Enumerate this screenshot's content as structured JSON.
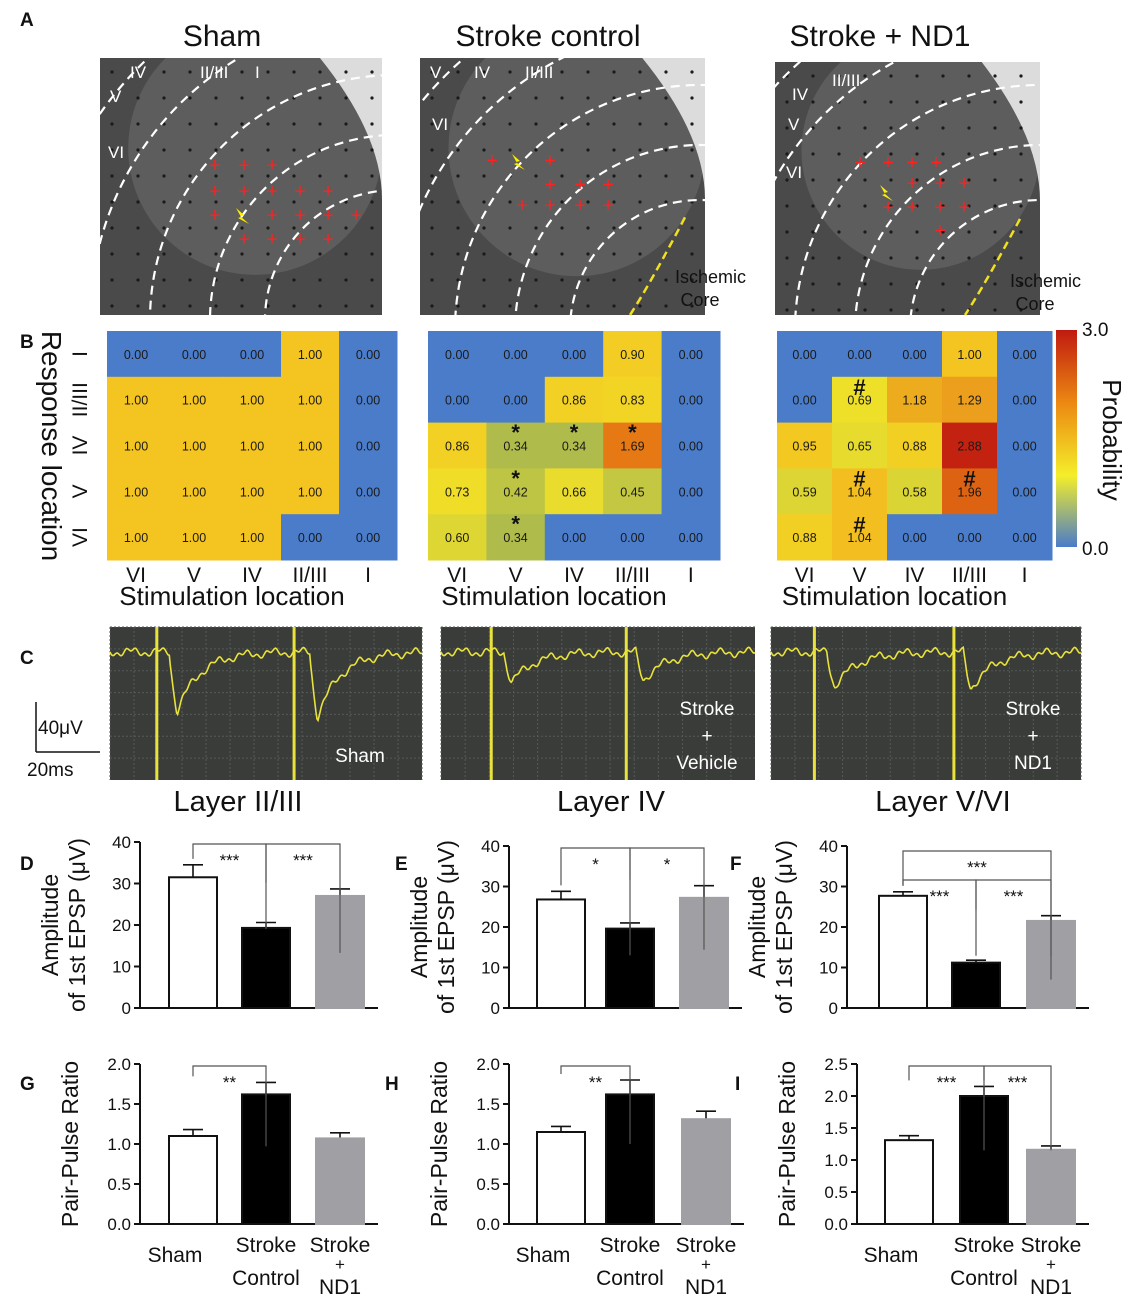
{
  "figure": {
    "panel_labels": [
      "A",
      "B",
      "C",
      "D",
      "E",
      "F",
      "G",
      "H",
      "I"
    ],
    "section_a": {
      "titles": [
        "Sham",
        "Stroke control",
        "Stroke + ND1"
      ],
      "layer_labels": [
        "IV",
        "II/III",
        "I",
        "V",
        "VI"
      ],
      "ischemic_core": [
        "Ischemic",
        "Core"
      ]
    },
    "section_c": {
      "trace_labels": [
        [
          "Sham"
        ],
        [
          "Stroke",
          "+",
          "Vehicle"
        ],
        [
          "Stroke",
          "+",
          "ND1"
        ]
      ],
      "scale_bar": {
        "amplitude": "40μV",
        "time": "20ms"
      },
      "layer_titles": [
        "Layer II/III",
        "Layer IV",
        "Layer V/VI"
      ]
    },
    "colors": {
      "sham_bar": "#ffffff",
      "stroke_bar": "#000000",
      "nd1_bar": "#a0a0a4",
      "heat_low": "#4a7cc9",
      "heat_high": "#c01a10",
      "trace": "#e8e23a",
      "trace_bg": "#3a3c3a"
    }
  },
  "chart_data": [
    {
      "type": "heatmap",
      "title": "Sham",
      "xlabel": "Stimulation location",
      "ylabel": "Response location",
      "x_categories": [
        "VI",
        "V",
        "IV",
        "II/III",
        "I"
      ],
      "y_categories": [
        "I",
        "II/III",
        "IV",
        "V",
        "VI"
      ],
      "values": [
        [
          0.0,
          0.0,
          0.0,
          1.0,
          0.0
        ],
        [
          1.0,
          1.0,
          1.0,
          1.0,
          0.0
        ],
        [
          1.0,
          1.0,
          1.0,
          1.0,
          0.0
        ],
        [
          1.0,
          1.0,
          1.0,
          1.0,
          0.0
        ],
        [
          1.0,
          1.0,
          1.0,
          0.0,
          0.0
        ]
      ],
      "annotations": []
    },
    {
      "type": "heatmap",
      "title": "Stroke control",
      "xlabel": "Stimulation location",
      "x_categories": [
        "VI",
        "V",
        "IV",
        "II/III",
        "I"
      ],
      "y_categories": [
        "I",
        "II/III",
        "IV",
        "V",
        "VI"
      ],
      "values": [
        [
          0.0,
          0.0,
          0.0,
          0.9,
          0.0
        ],
        [
          0.0,
          0.0,
          0.86,
          0.83,
          0.0
        ],
        [
          0.86,
          0.34,
          0.34,
          1.69,
          0.0
        ],
        [
          0.73,
          0.42,
          0.66,
          0.45,
          0.0
        ],
        [
          0.6,
          0.34,
          0.0,
          0.0,
          0.0
        ]
      ],
      "annotations": [
        {
          "row": 2,
          "col": 1,
          "mark": "*"
        },
        {
          "row": 2,
          "col": 2,
          "mark": "*"
        },
        {
          "row": 2,
          "col": 3,
          "mark": "*"
        },
        {
          "row": 3,
          "col": 1,
          "mark": "*"
        },
        {
          "row": 4,
          "col": 1,
          "mark": "*"
        }
      ]
    },
    {
      "type": "heatmap",
      "title": "Stroke + ND1",
      "xlabel": "Stimulation location",
      "x_categories": [
        "VI",
        "V",
        "IV",
        "II/III",
        "I"
      ],
      "y_categories": [
        "I",
        "II/III",
        "IV",
        "V",
        "VI"
      ],
      "values": [
        [
          0.0,
          0.0,
          0.0,
          1.0,
          0.0
        ],
        [
          0.0,
          0.69,
          1.18,
          1.29,
          0.0
        ],
        [
          0.95,
          0.65,
          0.88,
          2.88,
          0.0
        ],
        [
          0.59,
          1.04,
          0.58,
          1.96,
          0.0
        ],
        [
          0.88,
          1.04,
          0.0,
          0.0,
          0.0
        ]
      ],
      "annotations": [
        {
          "row": 1,
          "col": 1,
          "mark": "#"
        },
        {
          "row": 3,
          "col": 1,
          "mark": "#"
        },
        {
          "row": 3,
          "col": 3,
          "mark": "#"
        },
        {
          "row": 4,
          "col": 1,
          "mark": "#"
        }
      ],
      "colorbar": {
        "label": "Probability",
        "min": 0.0,
        "max": 3.0,
        "tick_labels": [
          "3.0",
          "0.0"
        ]
      }
    },
    {
      "type": "bar",
      "panel": "D",
      "title": "Layer II/III",
      "categories": [
        "Sham",
        "Stroke Control",
        "Stroke + ND1"
      ],
      "values": [
        31.5,
        19.3,
        27.0
      ],
      "errors": [
        3.0,
        1.3,
        1.7
      ],
      "ylabel": [
        "Amplitude",
        "of 1st EPSP (μV)"
      ],
      "ylim": [
        0,
        40
      ],
      "yticks": [
        "0",
        "10",
        "20",
        "30",
        "40"
      ],
      "significance": [
        {
          "from": 0,
          "to": 1,
          "label": "***"
        },
        {
          "from": 1,
          "to": 2,
          "label": "***"
        }
      ]
    },
    {
      "type": "bar",
      "panel": "E",
      "title": "Layer IV",
      "categories": [
        "Sham",
        "Stroke Control",
        "Stroke + ND1"
      ],
      "values": [
        26.8,
        19.6,
        27.2
      ],
      "errors": [
        2.0,
        1.4,
        3.0
      ],
      "ylabel": [
        "Amplitude",
        "of 1st EPSP (μV)"
      ],
      "ylim": [
        0,
        40
      ],
      "yticks": [
        "0",
        "10",
        "20",
        "30",
        "40"
      ],
      "significance": [
        {
          "from": 0,
          "to": 1,
          "label": "*"
        },
        {
          "from": 1,
          "to": 2,
          "label": "*"
        }
      ]
    },
    {
      "type": "bar",
      "panel": "F",
      "title": "Layer V/VI",
      "categories": [
        "Sham",
        "Stroke Control",
        "Stroke + ND1"
      ],
      "values": [
        27.7,
        11.2,
        21.5
      ],
      "errors": [
        1.0,
        0.6,
        1.3
      ],
      "ylabel": [
        "Amplitude",
        "of 1st EPSP (μV)"
      ],
      "ylim": [
        0,
        40
      ],
      "yticks": [
        "0",
        "10",
        "20",
        "30",
        "40"
      ],
      "significance": [
        {
          "from": 0,
          "to": 1,
          "label": "***"
        },
        {
          "from": 1,
          "to": 2,
          "label": "***"
        },
        {
          "from": 0,
          "to": 2,
          "label": "***"
        }
      ]
    },
    {
      "type": "bar",
      "panel": "G",
      "categories": [
        "Sham",
        "Stroke Control",
        "Stroke + ND1"
      ],
      "values": [
        1.1,
        1.62,
        1.07
      ],
      "errors": [
        0.08,
        0.15,
        0.07
      ],
      "ylabel": [
        "Pair-Pulse Ratio"
      ],
      "ylim": [
        0,
        2.0
      ],
      "yticks": [
        "0.0",
        "0.5",
        "1.0",
        "1.5",
        "2.0"
      ],
      "significance": [
        {
          "from": 0,
          "to": 1,
          "label": "**"
        }
      ]
    },
    {
      "type": "bar",
      "panel": "H",
      "categories": [
        "Sham",
        "Stroke Control",
        "Stroke + ND1"
      ],
      "values": [
        1.15,
        1.62,
        1.31
      ],
      "errors": [
        0.07,
        0.18,
        0.1
      ],
      "ylabel": [
        "Pair-Pulse Ratio"
      ],
      "ylim": [
        0,
        2.0
      ],
      "yticks": [
        "0.0",
        "0.5",
        "1.0",
        "1.5",
        "2.0"
      ],
      "significance": [
        {
          "from": 0,
          "to": 1,
          "label": "**"
        }
      ]
    },
    {
      "type": "bar",
      "panel": "I",
      "categories": [
        "Sham",
        "Stroke Control",
        "Stroke + ND1"
      ],
      "values": [
        1.31,
        2.0,
        1.16
      ],
      "errors": [
        0.07,
        0.15,
        0.06
      ],
      "ylabel": [
        "Pair-Pulse Ratio"
      ],
      "ylim": [
        0,
        2.5
      ],
      "yticks": [
        "0.0",
        "0.5",
        "1.0",
        "1.5",
        "2.0",
        "2.5"
      ],
      "significance": [
        {
          "from": 0,
          "to": 1,
          "label": "***"
        },
        {
          "from": 1,
          "to": 2,
          "label": "***"
        }
      ]
    }
  ]
}
